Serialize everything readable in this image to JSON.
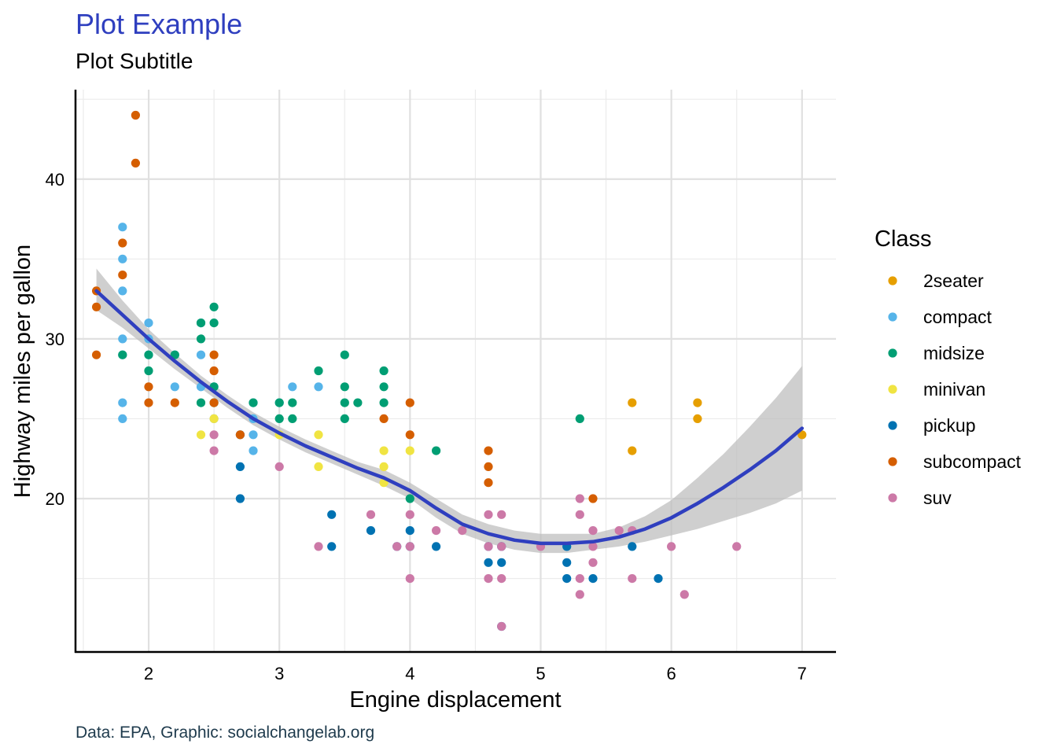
{
  "chart_data": {
    "type": "scatter",
    "title": "Plot Example",
    "subtitle": "Plot Subtitle",
    "caption": "Data: EPA, Graphic: socialchangelab.org",
    "xlabel": "Engine displacement",
    "ylabel": "Highway miles per gallon",
    "xlim": [
      1.44,
      7.26
    ],
    "ylim": [
      10.4,
      45.6
    ],
    "x_ticks": [
      2,
      3,
      4,
      5,
      6,
      7
    ],
    "y_ticks": [
      20,
      30,
      40
    ],
    "legend": {
      "title": "Class",
      "position": "right"
    },
    "grid": true,
    "series": [
      {
        "name": "2seater",
        "color": "#E69F00",
        "points": [
          [
            5.7,
            26
          ],
          [
            5.7,
            23
          ],
          [
            6.2,
            26
          ],
          [
            6.2,
            25
          ],
          [
            7.0,
            24
          ]
        ]
      },
      {
        "name": "compact",
        "color": "#56B4E9",
        "points": [
          [
            1.8,
            37
          ],
          [
            1.8,
            35
          ],
          [
            1.8,
            33
          ],
          [
            1.8,
            30
          ],
          [
            1.8,
            29
          ],
          [
            1.8,
            26
          ],
          [
            1.8,
            25
          ],
          [
            2.0,
            31
          ],
          [
            2.0,
            30
          ],
          [
            2.0,
            29
          ],
          [
            2.2,
            29
          ],
          [
            2.2,
            27
          ],
          [
            2.4,
            31
          ],
          [
            2.4,
            29
          ],
          [
            2.4,
            27
          ],
          [
            2.5,
            27
          ],
          [
            2.5,
            25
          ],
          [
            2.8,
            26
          ],
          [
            2.8,
            25
          ],
          [
            2.8,
            24
          ],
          [
            2.8,
            23
          ],
          [
            3.0,
            26
          ],
          [
            3.1,
            27
          ],
          [
            3.3,
            27
          ]
        ]
      },
      {
        "name": "midsize",
        "color": "#009E73",
        "points": [
          [
            1.8,
            29
          ],
          [
            2.0,
            29
          ],
          [
            2.0,
            28
          ],
          [
            2.2,
            29
          ],
          [
            2.4,
            31
          ],
          [
            2.4,
            30
          ],
          [
            2.4,
            26
          ],
          [
            2.5,
            32
          ],
          [
            2.5,
            31
          ],
          [
            2.5,
            27
          ],
          [
            2.5,
            26
          ],
          [
            2.8,
            26
          ],
          [
            3.0,
            26
          ],
          [
            3.0,
            25
          ],
          [
            3.1,
            26
          ],
          [
            3.1,
            25
          ],
          [
            3.3,
            28
          ],
          [
            3.5,
            29
          ],
          [
            3.5,
            27
          ],
          [
            3.5,
            26
          ],
          [
            3.5,
            25
          ],
          [
            3.6,
            26
          ],
          [
            3.8,
            28
          ],
          [
            3.8,
            27
          ],
          [
            3.8,
            26
          ],
          [
            4.0,
            20
          ],
          [
            4.2,
            23
          ],
          [
            5.3,
            25
          ]
        ]
      },
      {
        "name": "minivan",
        "color": "#F0E442",
        "points": [
          [
            2.4,
            24
          ],
          [
            2.5,
            25
          ],
          [
            3.0,
            24
          ],
          [
            3.3,
            24
          ],
          [
            3.3,
            22
          ],
          [
            3.8,
            23
          ],
          [
            3.8,
            22
          ],
          [
            3.8,
            21
          ],
          [
            4.0,
            23
          ]
        ]
      },
      {
        "name": "pickup",
        "color": "#0072B2",
        "points": [
          [
            2.7,
            22
          ],
          [
            2.7,
            20
          ],
          [
            2.7,
            24
          ],
          [
            3.4,
            19
          ],
          [
            3.4,
            17
          ],
          [
            3.7,
            18
          ],
          [
            3.9,
            17
          ],
          [
            4.0,
            18
          ],
          [
            4.0,
            17
          ],
          [
            4.2,
            17
          ],
          [
            4.6,
            17
          ],
          [
            4.6,
            16
          ],
          [
            4.7,
            17
          ],
          [
            4.7,
            16
          ],
          [
            4.7,
            12
          ],
          [
            5.2,
            17
          ],
          [
            5.2,
            16
          ],
          [
            5.2,
            15
          ],
          [
            5.4,
            15
          ],
          [
            5.7,
            17
          ],
          [
            5.9,
            15
          ]
        ]
      },
      {
        "name": "subcompact",
        "color": "#D55E00",
        "points": [
          [
            1.6,
            33
          ],
          [
            1.6,
            32
          ],
          [
            1.6,
            29
          ],
          [
            1.8,
            36
          ],
          [
            1.8,
            34
          ],
          [
            1.9,
            44
          ],
          [
            1.9,
            41
          ],
          [
            2.0,
            27
          ],
          [
            2.0,
            26
          ],
          [
            2.2,
            26
          ],
          [
            2.5,
            29
          ],
          [
            2.5,
            28
          ],
          [
            2.5,
            26
          ],
          [
            2.7,
            24
          ],
          [
            3.8,
            25
          ],
          [
            4.0,
            26
          ],
          [
            4.0,
            24
          ],
          [
            4.6,
            23
          ],
          [
            4.6,
            22
          ],
          [
            4.6,
            21
          ],
          [
            5.4,
            20
          ]
        ]
      },
      {
        "name": "suv",
        "color": "#CC79A7",
        "points": [
          [
            2.5,
            24
          ],
          [
            2.5,
            23
          ],
          [
            3.0,
            22
          ],
          [
            3.3,
            17
          ],
          [
            3.7,
            19
          ],
          [
            3.9,
            17
          ],
          [
            4.0,
            19
          ],
          [
            4.0,
            17
          ],
          [
            4.0,
            15
          ],
          [
            4.2,
            18
          ],
          [
            4.4,
            18
          ],
          [
            4.6,
            19
          ],
          [
            4.6,
            17
          ],
          [
            4.6,
            15
          ],
          [
            4.7,
            19
          ],
          [
            4.7,
            17
          ],
          [
            4.7,
            15
          ],
          [
            4.7,
            12
          ],
          [
            5.0,
            17
          ],
          [
            5.3,
            20
          ],
          [
            5.3,
            19
          ],
          [
            5.3,
            15
          ],
          [
            5.3,
            14
          ],
          [
            5.4,
            18
          ],
          [
            5.4,
            17
          ],
          [
            5.4,
            16
          ],
          [
            5.6,
            18
          ],
          [
            5.7,
            18
          ],
          [
            5.7,
            15
          ],
          [
            6.0,
            17
          ],
          [
            6.1,
            14
          ],
          [
            6.5,
            17
          ]
        ]
      }
    ],
    "smooth": {
      "method": "loess",
      "color": "#2F3FBF",
      "band_color": "#BDBDBD",
      "x": [
        1.6,
        1.8,
        2.0,
        2.2,
        2.4,
        2.6,
        2.8,
        3.0,
        3.2,
        3.4,
        3.6,
        3.8,
        4.0,
        4.2,
        4.4,
        4.6,
        4.8,
        5.0,
        5.2,
        5.4,
        5.6,
        5.8,
        6.0,
        6.2,
        6.4,
        6.6,
        6.8,
        7.0
      ],
      "y": [
        33.0,
        31.5,
        30.0,
        28.6,
        27.3,
        26.1,
        25.0,
        24.1,
        23.3,
        22.6,
        21.9,
        21.3,
        20.5,
        19.4,
        18.4,
        17.8,
        17.4,
        17.2,
        17.2,
        17.3,
        17.6,
        18.1,
        18.8,
        19.7,
        20.7,
        21.8,
        23.0,
        24.4
      ],
      "lower": [
        31.8,
        30.7,
        29.4,
        28.1,
        26.9,
        25.7,
        24.6,
        23.7,
        22.9,
        22.2,
        21.5,
        20.8,
        20.0,
        18.8,
        17.8,
        17.2,
        16.8,
        16.6,
        16.6,
        16.8,
        17.0,
        17.3,
        17.7,
        18.1,
        18.6,
        19.1,
        19.7,
        20.5
      ],
      "upper": [
        34.4,
        32.4,
        30.6,
        29.1,
        27.7,
        26.5,
        25.4,
        24.5,
        23.7,
        23.0,
        22.3,
        21.8,
        21.0,
        20.0,
        19.0,
        18.4,
        18.0,
        17.8,
        17.8,
        17.8,
        18.2,
        18.9,
        19.9,
        21.3,
        22.8,
        24.5,
        26.3,
        28.3
      ]
    }
  }
}
